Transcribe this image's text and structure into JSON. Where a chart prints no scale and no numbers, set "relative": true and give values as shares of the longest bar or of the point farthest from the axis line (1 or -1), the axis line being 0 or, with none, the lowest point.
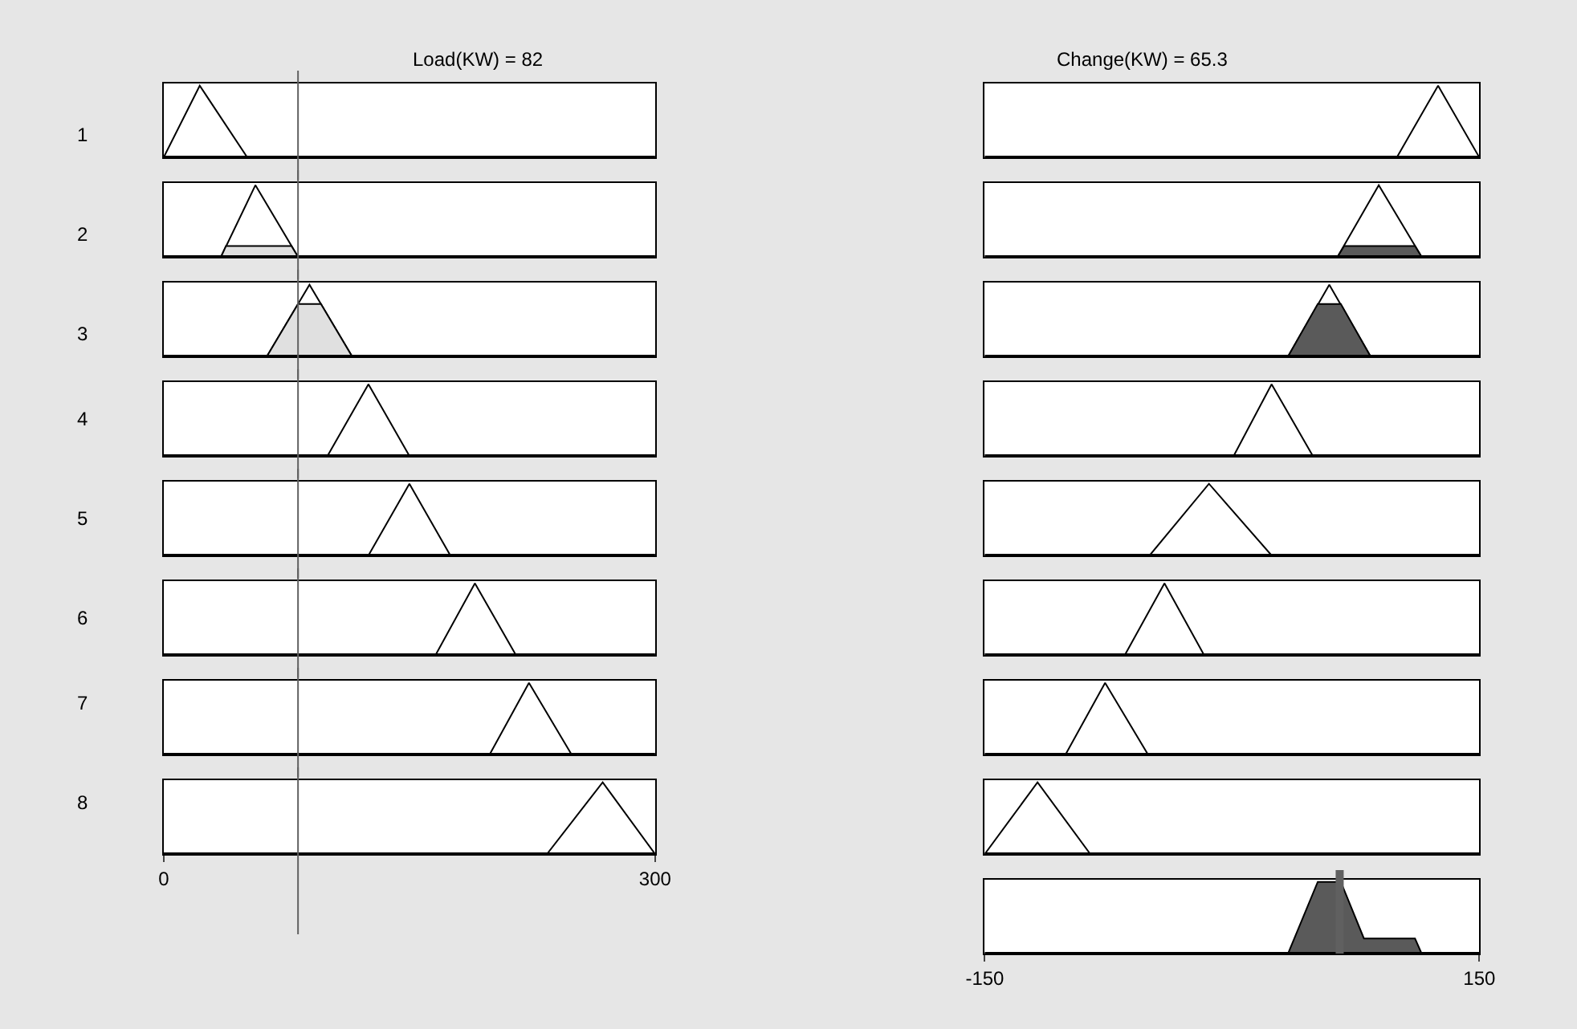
{
  "chart_data": [
    {
      "type": "line",
      "title": "Load(KW) = 82",
      "ylabel": "1",
      "relative": true,
      "xlim": [
        0,
        300
      ],
      "tick_labels": false,
      "ref_lines": [
        {
          "axis": "x",
          "value": 82,
          "color": "#606060"
        }
      ],
      "series": [
        {
          "color": "#000000",
          "x": [
            0,
            22,
            51
          ],
          "values": [
            0,
            1,
            0
          ]
        }
      ]
    },
    {
      "type": "line",
      "title": "Change(KW) = 65.3",
      "relative": true,
      "xlim": [
        -150,
        150
      ],
      "tick_labels": false,
      "series": [
        {
          "color": "#000000",
          "x": [
            100,
            125,
            150
          ],
          "values": [
            0,
            1,
            0
          ]
        }
      ]
    },
    {
      "type": "line",
      "ylabel": "2",
      "relative": true,
      "xlim": [
        0,
        300
      ],
      "tick_labels": false,
      "ref_lines": [
        {
          "axis": "x",
          "value": 82,
          "color": "#606060"
        }
      ],
      "series": [
        {
          "color": "#000000",
          "x": [
            35,
            56,
            82
          ],
          "values": [
            0,
            1,
            0
          ]
        },
        {
          "type": "area",
          "color": "#e0e0e0",
          "x": [
            35,
            38,
            78,
            82
          ],
          "values": [
            0,
            0.15,
            0.15,
            0
          ]
        }
      ]
    },
    {
      "type": "line",
      "relative": true,
      "xlim": [
        -150,
        150
      ],
      "tick_labels": false,
      "series": [
        {
          "color": "#000000",
          "x": [
            64,
            89,
            115
          ],
          "values": [
            0,
            1,
            0
          ]
        },
        {
          "type": "area",
          "color": "#5a5a5a",
          "x": [
            64,
            68,
            111,
            115
          ],
          "values": [
            0,
            0.15,
            0.15,
            0
          ]
        }
      ]
    },
    {
      "type": "line",
      "ylabel": "3",
      "relative": true,
      "xlim": [
        0,
        300
      ],
      "tick_labels": false,
      "ref_lines": [
        {
          "axis": "x",
          "value": 82,
          "color": "#606060"
        }
      ],
      "series": [
        {
          "color": "#000000",
          "x": [
            63,
            89,
            115
          ],
          "values": [
            0,
            1,
            0
          ]
        },
        {
          "type": "area",
          "color": "#e0e0e0",
          "x": [
            63,
            82,
            96,
            115
          ],
          "values": [
            0,
            0.73,
            0.73,
            0
          ]
        }
      ]
    },
    {
      "type": "line",
      "relative": true,
      "xlim": [
        -150,
        150
      ],
      "tick_labels": false,
      "series": [
        {
          "color": "#000000",
          "x": [
            34,
            59,
            84
          ],
          "values": [
            0,
            1,
            0
          ]
        },
        {
          "type": "area",
          "color": "#5a5a5a",
          "x": [
            34,
            52,
            66,
            84
          ],
          "values": [
            0,
            0.73,
            0.73,
            0
          ]
        }
      ]
    },
    {
      "type": "line",
      "ylabel": "4",
      "relative": true,
      "xlim": [
        0,
        300
      ],
      "tick_labels": false,
      "ref_lines": [
        {
          "axis": "x",
          "value": 82,
          "color": "#606060"
        }
      ],
      "series": [
        {
          "color": "#000000",
          "x": [
            100,
            125,
            150
          ],
          "values": [
            0,
            1,
            0
          ]
        }
      ]
    },
    {
      "type": "line",
      "relative": true,
      "xlim": [
        -150,
        150
      ],
      "tick_labels": false,
      "series": [
        {
          "color": "#000000",
          "x": [
            1,
            24,
            49
          ],
          "values": [
            0,
            1,
            0
          ]
        }
      ]
    },
    {
      "type": "line",
      "ylabel": "5",
      "relative": true,
      "xlim": [
        0,
        300
      ],
      "tick_labels": false,
      "ref_lines": [
        {
          "axis": "x",
          "value": 82,
          "color": "#606060"
        }
      ],
      "series": [
        {
          "color": "#000000",
          "x": [
            125,
            150,
            175
          ],
          "values": [
            0,
            1,
            0
          ]
        }
      ]
    },
    {
      "type": "line",
      "relative": true,
      "xlim": [
        -150,
        150
      ],
      "tick_labels": false,
      "series": [
        {
          "color": "#000000",
          "x": [
            -50,
            -14,
            24
          ],
          "values": [
            0,
            1,
            0
          ]
        }
      ]
    },
    {
      "type": "line",
      "ylabel": "6",
      "relative": true,
      "xlim": [
        0,
        300
      ],
      "tick_labels": false,
      "ref_lines": [
        {
          "axis": "x",
          "value": 82,
          "color": "#606060"
        }
      ],
      "series": [
        {
          "color": "#000000",
          "x": [
            166,
            190,
            215
          ],
          "values": [
            0,
            1,
            0
          ]
        }
      ]
    },
    {
      "type": "line",
      "relative": true,
      "xlim": [
        -150,
        150
      ],
      "tick_labels": false,
      "series": [
        {
          "color": "#000000",
          "x": [
            -65,
            -41,
            -17
          ],
          "values": [
            0,
            1,
            0
          ]
        }
      ]
    },
    {
      "type": "line",
      "ylabel": "7",
      "relative": true,
      "xlim": [
        0,
        300
      ],
      "tick_labels": false,
      "ref_lines": [
        {
          "axis": "x",
          "value": 82,
          "color": "#606060"
        }
      ],
      "series": [
        {
          "color": "#000000",
          "x": [
            199,
            223,
            249
          ],
          "values": [
            0,
            1,
            0
          ]
        }
      ]
    },
    {
      "type": "line",
      "relative": true,
      "xlim": [
        -150,
        150
      ],
      "tick_labels": false,
      "series": [
        {
          "color": "#000000",
          "x": [
            -101,
            -77,
            -51
          ],
          "values": [
            0,
            1,
            0
          ]
        }
      ]
    },
    {
      "type": "line",
      "ylabel": "8",
      "relative": true,
      "xlim": [
        0,
        300
      ],
      "xticks": [
        0,
        300
      ],
      "tick_labels": "x",
      "ref_lines": [
        {
          "axis": "x",
          "value": 82,
          "color": "#606060"
        }
      ],
      "series": [
        {
          "color": "#000000",
          "x": [
            234,
            268,
            300
          ],
          "values": [
            0,
            1,
            0
          ]
        }
      ]
    },
    {
      "type": "line",
      "relative": true,
      "xlim": [
        -150,
        150
      ],
      "tick_labels": false,
      "series": [
        {
          "color": "#000000",
          "x": [
            -150,
            -118,
            -86
          ],
          "values": [
            0,
            1,
            0
          ]
        }
      ]
    },
    {
      "type": "area",
      "relative": true,
      "xlim": [
        -150,
        150
      ],
      "xticks": [
        -150,
        150
      ],
      "tick_labels": "x",
      "ref_lines": [
        {
          "axis": "x",
          "value": 65.3,
          "color": "#606060"
        }
      ],
      "series": [
        {
          "color": "#5a5a5a",
          "x": [
            34,
            52,
            66,
            80,
            111,
            115
          ],
          "values": [
            0,
            1,
            1,
            0.21,
            0.21,
            0
          ]
        }
      ]
    }
  ]
}
